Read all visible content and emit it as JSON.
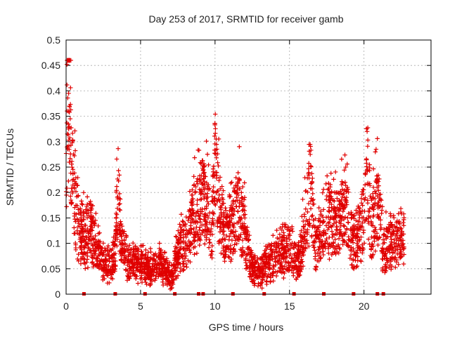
{
  "chart_data": {
    "type": "scatter",
    "title": "Day 253 of 2017, SRMTID for receiver gamb",
    "xlabel": "GPS time / hours",
    "ylabel": "SRMTID / TECUs",
    "xlim": [
      0,
      24.5
    ],
    "ylim": [
      0,
      0.5
    ],
    "x_ticks": [
      0,
      5,
      10,
      15,
      20
    ],
    "y_ticks": [
      0,
      0.05,
      0.1,
      0.15,
      0.2,
      0.25,
      0.3,
      0.35,
      0.4,
      0.45,
      0.5
    ],
    "x_tick_labels": [
      "0",
      "5",
      "10",
      "15",
      "20"
    ],
    "y_tick_labels": [
      "0",
      "0.05",
      "0.1",
      "0.15",
      "0.2",
      "0.25",
      "0.3",
      "0.35",
      "0.4",
      "0.45",
      "0.5"
    ],
    "grid": true,
    "marker": "+",
    "color": "#e00000",
    "series": [
      {
        "name": "SRMTID",
        "profile": [
          [
            0.0,
            0.26
          ],
          [
            0.1,
            0.35
          ],
          [
            0.2,
            0.42
          ],
          [
            0.3,
            0.33
          ],
          [
            0.4,
            0.22
          ],
          [
            0.6,
            0.18
          ],
          [
            0.9,
            0.12
          ],
          [
            1.3,
            0.11
          ],
          [
            1.7,
            0.12
          ],
          [
            2.0,
            0.09
          ],
          [
            2.4,
            0.06
          ],
          [
            3.0,
            0.05
          ],
          [
            3.3,
            0.08
          ],
          [
            3.5,
            0.22
          ],
          [
            3.7,
            0.1
          ],
          [
            4.2,
            0.06
          ],
          [
            5.0,
            0.06
          ],
          [
            5.6,
            0.05
          ],
          [
            6.2,
            0.06
          ],
          [
            6.8,
            0.04
          ],
          [
            7.1,
            0.03
          ],
          [
            7.5,
            0.08
          ],
          [
            8.2,
            0.11
          ],
          [
            8.6,
            0.15
          ],
          [
            9.0,
            0.18
          ],
          [
            9.4,
            0.17
          ],
          [
            9.8,
            0.14
          ],
          [
            10.0,
            0.27
          ],
          [
            10.2,
            0.18
          ],
          [
            10.6,
            0.12
          ],
          [
            11.2,
            0.13
          ],
          [
            11.6,
            0.17
          ],
          [
            12.0,
            0.12
          ],
          [
            12.5,
            0.05
          ],
          [
            13.0,
            0.04
          ],
          [
            13.5,
            0.06
          ],
          [
            14.0,
            0.07
          ],
          [
            14.5,
            0.08
          ],
          [
            15.2,
            0.09
          ],
          [
            15.5,
            0.05
          ],
          [
            15.8,
            0.09
          ],
          [
            16.1,
            0.15
          ],
          [
            16.4,
            0.2
          ],
          [
            16.7,
            0.1
          ],
          [
            17.2,
            0.11
          ],
          [
            17.7,
            0.15
          ],
          [
            18.3,
            0.13
          ],
          [
            18.6,
            0.17
          ],
          [
            19.0,
            0.13
          ],
          [
            19.5,
            0.09
          ],
          [
            20.0,
            0.15
          ],
          [
            20.2,
            0.25
          ],
          [
            20.5,
            0.12
          ],
          [
            20.9,
            0.18
          ],
          [
            21.3,
            0.09
          ],
          [
            21.8,
            0.1
          ],
          [
            22.3,
            0.11
          ],
          [
            22.7,
            0.1
          ]
        ],
        "x_range": [
          0.0,
          22.7
        ],
        "approx_point_count": 3000
      }
    ],
    "data_gaps_x": [
      1.2,
      3.3,
      5.3,
      7.3,
      8.9,
      9.2,
      11.2,
      13.3,
      15.3,
      17.3,
      19.3,
      20.9,
      21.3
    ]
  }
}
